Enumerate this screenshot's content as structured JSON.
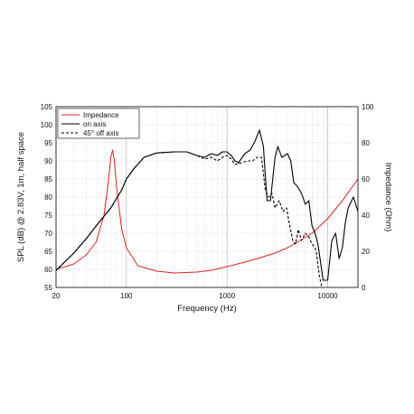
{
  "chart_data": {
    "type": "line",
    "xlabel": "Frequency (Hz)",
    "ylabel_left": "SPL (dB) @ 2.83V, 1m, half space",
    "ylabel_right": "Impedance (Ohm)",
    "xscale": "log",
    "xlim": [
      20,
      20000
    ],
    "ylim_left": [
      55,
      105
    ],
    "ylim_right": [
      0,
      100
    ],
    "grid": true,
    "legend_position": "top-left",
    "x_ticks": [
      "20",
      "100",
      "1000",
      "10000"
    ],
    "y_ticks_left": [
      "55",
      "60",
      "65",
      "70",
      "75",
      "80",
      "85",
      "90",
      "95",
      "100",
      "105"
    ],
    "y_ticks_right": [
      "0",
      "20",
      "40",
      "60",
      "80",
      "100"
    ],
    "colors": {
      "impedance": "#e02020",
      "on_axis": "#000000",
      "off_axis": "#000000"
    },
    "series": [
      {
        "name": "Impedance",
        "axis": "right",
        "style": "solid",
        "points": [
          [
            20,
            10
          ],
          [
            30,
            13
          ],
          [
            40,
            18
          ],
          [
            50,
            25
          ],
          [
            60,
            40
          ],
          [
            66,
            58
          ],
          [
            70,
            72
          ],
          [
            73,
            76
          ],
          [
            76,
            70
          ],
          [
            80,
            55
          ],
          [
            90,
            32
          ],
          [
            100,
            22
          ],
          [
            130,
            12
          ],
          [
            200,
            9
          ],
          [
            300,
            8
          ],
          [
            500,
            8.5
          ],
          [
            700,
            9.5
          ],
          [
            1000,
            11.5
          ],
          [
            1500,
            14
          ],
          [
            2000,
            16
          ],
          [
            3000,
            19
          ],
          [
            4000,
            22
          ],
          [
            5000,
            25
          ],
          [
            7000,
            30
          ],
          [
            10000,
            38
          ],
          [
            14000,
            48
          ],
          [
            20000,
            60
          ]
        ]
      },
      {
        "name": "on axis",
        "axis": "left",
        "style": "solid",
        "points": [
          [
            20,
            59.7
          ],
          [
            30,
            64.5
          ],
          [
            40,
            68.5
          ],
          [
            50,
            72
          ],
          [
            70,
            77
          ],
          [
            90,
            82
          ],
          [
            100,
            85
          ],
          [
            120,
            88
          ],
          [
            150,
            91
          ],
          [
            200,
            92.2
          ],
          [
            300,
            92.5
          ],
          [
            400,
            92.5
          ],
          [
            500,
            91.5
          ],
          [
            600,
            91
          ],
          [
            700,
            92
          ],
          [
            800,
            91.5
          ],
          [
            900,
            92.5
          ],
          [
            1000,
            92.5
          ],
          [
            1100,
            91.5
          ],
          [
            1200,
            90
          ],
          [
            1300,
            89.5
          ],
          [
            1500,
            92
          ],
          [
            1700,
            93
          ],
          [
            1900,
            95.5
          ],
          [
            2100,
            98.5
          ],
          [
            2300,
            94
          ],
          [
            2400,
            86
          ],
          [
            2500,
            79
          ],
          [
            2700,
            79
          ],
          [
            3000,
            91
          ],
          [
            3200,
            94
          ],
          [
            3500,
            91
          ],
          [
            4000,
            92
          ],
          [
            4300,
            90
          ],
          [
            4600,
            84
          ],
          [
            5000,
            83
          ],
          [
            5500,
            81
          ],
          [
            6000,
            78
          ],
          [
            6500,
            79
          ],
          [
            7000,
            72
          ],
          [
            7500,
            70
          ],
          [
            8000,
            67
          ],
          [
            8500,
            62
          ],
          [
            9000,
            57
          ],
          [
            10000,
            57
          ],
          [
            11000,
            68
          ],
          [
            12000,
            70
          ],
          [
            13000,
            63
          ],
          [
            14000,
            66
          ],
          [
            15000,
            73
          ],
          [
            16000,
            77
          ],
          [
            18000,
            80
          ],
          [
            19000,
            78
          ],
          [
            20000,
            76
          ]
        ]
      },
      {
        "name": "45° off axis",
        "axis": "left",
        "style": "dashed",
        "points": [
          [
            20,
            59.7
          ],
          [
            30,
            64.5
          ],
          [
            40,
            68.5
          ],
          [
            50,
            72
          ],
          [
            70,
            77
          ],
          [
            90,
            82
          ],
          [
            100,
            85
          ],
          [
            120,
            88
          ],
          [
            150,
            91
          ],
          [
            200,
            92.2
          ],
          [
            300,
            92.5
          ],
          [
            400,
            92.5
          ],
          [
            500,
            91.5
          ],
          [
            600,
            90.5
          ],
          [
            700,
            91
          ],
          [
            800,
            90
          ],
          [
            900,
            91
          ],
          [
            1000,
            91.5
          ],
          [
            1100,
            90.5
          ],
          [
            1200,
            89
          ],
          [
            1400,
            89.5
          ],
          [
            1600,
            90
          ],
          [
            1800,
            90
          ],
          [
            2000,
            91
          ],
          [
            2200,
            91
          ],
          [
            2400,
            82
          ],
          [
            2600,
            80
          ],
          [
            2800,
            81
          ],
          [
            3000,
            77
          ],
          [
            3300,
            79
          ],
          [
            3600,
            76
          ],
          [
            3900,
            77
          ],
          [
            4200,
            72
          ],
          [
            4500,
            68
          ],
          [
            4800,
            67
          ],
          [
            5100,
            71
          ],
          [
            5500,
            68
          ],
          [
            6000,
            70
          ],
          [
            6500,
            69
          ],
          [
            7000,
            67
          ],
          [
            7500,
            66
          ],
          [
            7800,
            64
          ],
          [
            8000,
            61
          ],
          [
            8300,
            58
          ],
          [
            8600,
            56
          ],
          [
            8800,
            55
          ]
        ]
      }
    ]
  }
}
